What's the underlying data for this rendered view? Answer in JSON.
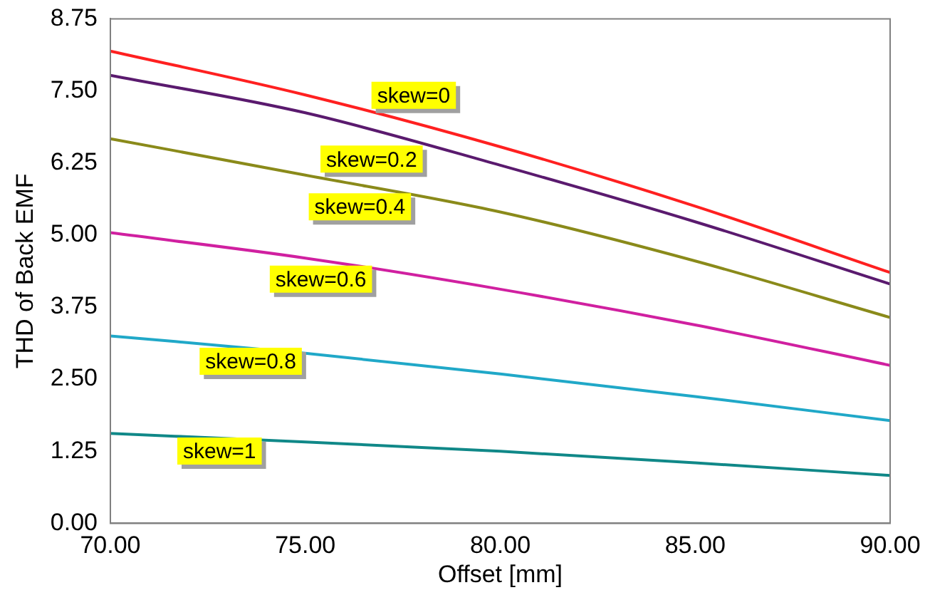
{
  "chart_data": {
    "type": "line",
    "xlabel": "Offset [mm]",
    "ylabel": "THD of Back EMF",
    "x": [
      70,
      75,
      80,
      85,
      90
    ],
    "series": [
      {
        "name": "skew=0",
        "color": "#ff2020",
        "values": [
          8.19,
          7.43,
          6.53,
          5.5,
          4.35
        ]
      },
      {
        "name": "skew=0.2",
        "color": "#5a1a6e",
        "values": [
          7.77,
          7.12,
          6.21,
          5.23,
          4.15
        ]
      },
      {
        "name": "skew=0.4",
        "color": "#8a8a1a",
        "values": [
          6.67,
          6.04,
          5.4,
          4.55,
          3.57
        ]
      },
      {
        "name": "skew=0.6",
        "color": "#d020a0",
        "values": [
          5.04,
          4.6,
          4.06,
          3.44,
          2.74
        ]
      },
      {
        "name": "skew=0.8",
        "color": "#20a8c8",
        "values": [
          3.25,
          2.95,
          2.59,
          2.2,
          1.78
        ]
      },
      {
        "name": "skew=1",
        "color": "#108888",
        "values": [
          1.56,
          1.41,
          1.25,
          1.05,
          0.83
        ]
      }
    ],
    "xlim": [
      70,
      90
    ],
    "xticks": [
      {
        "value": 70,
        "label": "70.00"
      },
      {
        "value": 75,
        "label": "75.00"
      },
      {
        "value": 80,
        "label": "80.00"
      },
      {
        "value": 85,
        "label": "85.00"
      },
      {
        "value": 90,
        "label": "90.00"
      }
    ],
    "ylim": [
      0,
      8.75
    ],
    "yticks": [
      {
        "value": 0,
        "label": "0.00"
      },
      {
        "value": 1.25,
        "label": "1.25"
      },
      {
        "value": 2.5,
        "label": "2.50"
      },
      {
        "value": 3.75,
        "label": "3.75"
      },
      {
        "value": 5,
        "label": "5.00"
      },
      {
        "value": 6.25,
        "label": "6.25"
      },
      {
        "value": 7.5,
        "label": "7.50"
      },
      {
        "value": 8.75,
        "label": "8.75"
      }
    ],
    "grid": false,
    "legend": false,
    "marker": "none",
    "line_style": "solid"
  }
}
